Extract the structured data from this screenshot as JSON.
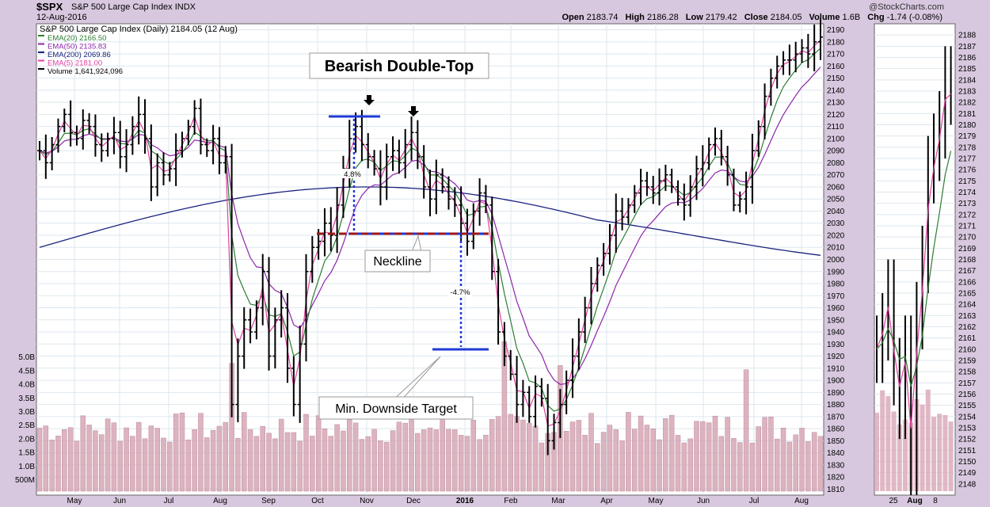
{
  "header": {
    "symbol": "$SPX",
    "index_name": "S&P 500 Large Cap Index",
    "exchange": "INDX",
    "date": "12-Aug-2016",
    "watermark": "@StockCharts.com",
    "open_label": "Open",
    "open": "2183.74",
    "high_label": "High",
    "high": "2186.28",
    "low_label": "Low",
    "low": "2179.42",
    "close_label": "Close",
    "close": "2184.05",
    "volume_label": "Volume",
    "volume": "1.6B",
    "chg_label": "Chg",
    "chg": "-1.74 (-0.08%)"
  },
  "colors": {
    "background": "#d8c8df",
    "plot_bg": "#ffffff",
    "grid": "#dde7ef",
    "price": "#000000",
    "ema20": "#2e7d32",
    "ema50": "#8e24aa",
    "ema200": "#1a237e",
    "ema5": "#e040a0",
    "volume": "#d8a6b6",
    "neckline": "#a01818",
    "top_line": "#1f3bd6"
  },
  "chart_data": [
    {
      "type": "candlestick",
      "title": "S&P 500 Large Cap Index (Daily) 2184.05 (12 Aug)",
      "legend_placement": "top-left",
      "legend": [
        {
          "label": "EMA(20) 2166.50",
          "color": "#2e7d32"
        },
        {
          "label": "EMA(50) 2135.83",
          "color": "#8e24aa"
        },
        {
          "label": "EMA(200) 2069.86",
          "color": "#1a237e"
        },
        {
          "label": "EMA(5) 2181.00",
          "color": "#e040a0"
        },
        {
          "label": "Volume 1,641,924,096",
          "color": "#000000"
        }
      ],
      "y_ticks": [
        1810,
        1820,
        1830,
        1840,
        1850,
        1860,
        1870,
        1880,
        1890,
        1900,
        1910,
        1920,
        1930,
        1940,
        1950,
        1960,
        1970,
        1980,
        1990,
        2000,
        2010,
        2020,
        2030,
        2040,
        2050,
        2060,
        2070,
        2080,
        2090,
        2100,
        2110,
        2120,
        2130,
        2140,
        2150,
        2160,
        2170,
        2180,
        2190
      ],
      "ylim": [
        1805,
        2195
      ],
      "volume_ticks": [
        "500M",
        "1.0B",
        "1.5B",
        "2.0B",
        "2.5B",
        "3.0B",
        "3.5B",
        "4.0B",
        "4.5B",
        "5.0B"
      ],
      "x_ticks": [
        "May",
        "Jun",
        "Jul",
        "Aug",
        "Sep",
        "Oct",
        "Nov",
        "Dec",
        "2016",
        "Feb",
        "Mar",
        "Apr",
        "May",
        "Jun",
        "Jul",
        "Aug"
      ],
      "grid": true,
      "close_series": [
        2090,
        2080,
        2095,
        2110,
        2120,
        2105,
        2100,
        2115,
        2110,
        2095,
        2090,
        2100,
        2105,
        2085,
        2095,
        2110,
        2120,
        2100,
        2060,
        2080,
        2070,
        2075,
        2090,
        2100,
        2110,
        2125,
        2095,
        2090,
        2100,
        2080,
        2085,
        1880,
        1920,
        1950,
        1940,
        1960,
        1990,
        1920,
        1950,
        1960,
        1910,
        1880,
        1930,
        1990,
        2010,
        2015,
        2030,
        2020,
        2045,
        2075,
        2100,
        2110,
        2095,
        2085,
        2075,
        2060,
        2085,
        2090,
        2080,
        2095,
        2105,
        2085,
        2060,
        2050,
        2070,
        2060,
        2050,
        2045,
        2030,
        2015,
        2040,
        2055,
        2045,
        1990,
        1940,
        1920,
        1905,
        1880,
        1890,
        1870,
        1895,
        1885,
        1850,
        1865,
        1880,
        1900,
        1920,
        1940,
        1960,
        1980,
        1995,
        2005,
        2020,
        2040,
        2035,
        2045,
        2055,
        2065,
        2060,
        2055,
        2065,
        2070,
        2060,
        2050,
        2045,
        2060,
        2075,
        2080,
        2095,
        2100,
        2085,
        2070,
        2045,
        2050,
        2060,
        2090,
        2110,
        2135,
        2150,
        2160,
        2165,
        2165,
        2170,
        2175,
        2170,
        2180,
        2184
      ],
      "ema20_end": 2166.5,
      "ema50_end": 2135.83,
      "ema200_end": 2069.86,
      "ema5_end": 2181.0,
      "annotations": [
        {
          "text": "Bearish Double-Top"
        },
        {
          "text": "Neckline",
          "value": 2020
        },
        {
          "text": "Min. Downside Target",
          "value": 1923
        },
        {
          "text": "4.8%"
        },
        {
          "text": "-4.7%"
        }
      ]
    },
    {
      "type": "candlestick",
      "title": "",
      "y_ticks": [
        2148,
        2149,
        2150,
        2151,
        2152,
        2153,
        2154,
        2155,
        2156,
        2157,
        2158,
        2159,
        2160,
        2161,
        2162,
        2163,
        2164,
        2165,
        2166,
        2167,
        2168,
        2169,
        2170,
        2171,
        2172,
        2173,
        2174,
        2175,
        2176,
        2177,
        2178,
        2179,
        2180,
        2181,
        2182,
        2183,
        2184,
        2185,
        2186,
        2187,
        2188
      ],
      "ylim": [
        2147,
        2189
      ],
      "x_ticks": [
        "25",
        "Aug",
        "8"
      ]
    }
  ]
}
